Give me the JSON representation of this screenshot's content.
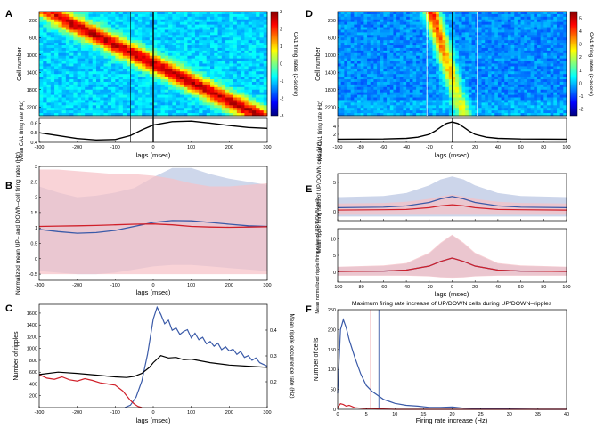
{
  "panels": {
    "A": {
      "label": "A",
      "heatmap": {
        "ylabel": "Cell number",
        "yticks": [
          200,
          600,
          1000,
          1400,
          1800,
          2200
        ],
        "ymax": 2400,
        "xlim": [
          -300,
          300
        ],
        "vlines": [
          -60,
          0
        ],
        "colorbar_label": "CA1 firing rates (z-score)",
        "cbar_ticks": [
          3,
          2,
          1,
          0,
          -1,
          -2,
          -3
        ],
        "cbar_range": [
          -3,
          3
        ]
      },
      "line": {
        "ylabel": "Mean CA1 firing rate (Hz)",
        "xlabel": "lags (msec)",
        "xlim": [
          -300,
          300
        ],
        "xticks": [
          -300,
          -200,
          -100,
          0,
          100,
          200,
          300
        ],
        "ylim": [
          0.4,
          0.65
        ],
        "yticks": [
          0.4,
          0.5,
          0.6
        ]
      }
    },
    "B": {
      "label": "B",
      "ylabel": "Normalized mean UP– and DOWN–cell firing rates (Hz)",
      "xlabel": "lags (msec)"
    },
    "C": {
      "label": "C",
      "ylabel": "Number of ripples",
      "ylabel_right": "Mean ripple occurrence rate (Hz)",
      "xlabel": "lags (msec)"
    },
    "D": {
      "label": "D",
      "heatmap": {
        "ylabel": "Cell number",
        "yticks": [
          200,
          600,
          1000,
          1400,
          1800,
          2200
        ],
        "ymax": 2400,
        "xlim": [
          -100,
          100
        ],
        "vlines": [
          -22,
          0,
          22
        ],
        "colorbar_label": "CA1 firing rates (z-score)",
        "cbar_ticks": [
          5,
          4,
          3,
          2,
          1,
          0,
          -1,
          -2
        ],
        "cbar_range": [
          -2.5,
          5.5
        ]
      },
      "line": {
        "ylabel": "Mean CA1 firing rate (Hz)",
        "xlabel": "lags (msec)",
        "xlim": [
          -100,
          100
        ],
        "xticks": [
          -100,
          -80,
          -60,
          -40,
          -20,
          0,
          20,
          40,
          60,
          80,
          100
        ],
        "ylim": [
          0,
          6
        ],
        "yticks": [
          2,
          4
        ]
      }
    },
    "E": {
      "label": "E",
      "top_ylabel": "Mean ripple firing rates of UP/DOWN cells (Hz)",
      "bottom_ylabel": "Mean normalized ripple firing rates of UP/DOWN cells",
      "xlabel": "lags (msec)"
    },
    "F": {
      "label": "F",
      "title": "Maximum firing rate increase of UP/DOWN cells during UP/DOWN–ripples",
      "ylabel": "Number of cells",
      "xlabel": "Firing rate increase (Hz)"
    }
  },
  "colors": {
    "up": "#3a5aa8",
    "down": "#d0202a",
    "black": "#000000",
    "up_fill": "#c6d0e8",
    "down_fill": "#f6c0c6",
    "white": "#ffffff"
  },
  "chart_data": [
    {
      "panel": "A-line",
      "type": "line",
      "xlabel": "lags (msec)",
      "ylabel": "Mean CA1 firing rate (Hz)",
      "xlim": [
        -300,
        300
      ],
      "ylim": [
        0.4,
        0.65
      ],
      "series": [
        {
          "name": "Mean CA1",
          "color": "black",
          "x": [
            -300,
            -250,
            -200,
            -150,
            -100,
            -60,
            -30,
            0,
            50,
            100,
            150,
            200,
            250,
            300
          ],
          "y": [
            0.5,
            0.47,
            0.44,
            0.425,
            0.43,
            0.47,
            0.53,
            0.58,
            0.615,
            0.62,
            0.6,
            0.575,
            0.555,
            0.545
          ]
        }
      ]
    },
    {
      "panel": "B",
      "type": "line",
      "xlabel": "lags (msec)",
      "ylabel": "Normalized mean UP– and DOWN–cell firing rates (Hz)",
      "xlim": [
        -300,
        300
      ],
      "ylim": [
        -0.7,
        3
      ],
      "xticks": [
        -300,
        -200,
        -100,
        0,
        100,
        200,
        300
      ],
      "yticks": [
        -0.5,
        0,
        0.5,
        1,
        1.5,
        2,
        2.5,
        3
      ],
      "series": [
        {
          "name": "UP",
          "color": "up",
          "x": [
            -300,
            -250,
            -200,
            -150,
            -100,
            -50,
            0,
            50,
            100,
            150,
            200,
            250,
            300
          ],
          "y": [
            0.95,
            0.88,
            0.83,
            0.85,
            0.92,
            1.05,
            1.18,
            1.24,
            1.23,
            1.18,
            1.12,
            1.07,
            1.05
          ],
          "upper": [
            2.35,
            2.15,
            2.0,
            2.05,
            2.15,
            2.3,
            2.65,
            2.95,
            2.95,
            2.75,
            2.6,
            2.5,
            2.4
          ],
          "lower": [
            -0.4,
            -0.45,
            -0.5,
            -0.5,
            -0.45,
            -0.35,
            -0.25,
            -0.2,
            -0.2,
            -0.25,
            -0.3,
            -0.35,
            -0.4
          ]
        },
        {
          "name": "DOWN",
          "color": "down",
          "x": [
            -300,
            -250,
            -200,
            -150,
            -100,
            -50,
            0,
            50,
            100,
            150,
            200,
            250,
            300
          ],
          "y": [
            1.05,
            1.06,
            1.07,
            1.08,
            1.1,
            1.12,
            1.13,
            1.1,
            1.05,
            1.03,
            1.02,
            1.03,
            1.04
          ],
          "upper": [
            2.9,
            2.9,
            2.85,
            2.8,
            2.75,
            2.75,
            2.7,
            2.6,
            2.45,
            2.35,
            2.35,
            2.4,
            2.45
          ],
          "lower": [
            -0.5,
            -0.5,
            -0.5,
            -0.5,
            -0.5,
            -0.5,
            -0.5,
            -0.5,
            -0.5,
            -0.5,
            -0.5,
            -0.5,
            -0.5
          ]
        }
      ]
    },
    {
      "panel": "C",
      "type": "line",
      "xlabel": "lags (msec)",
      "ylabel": "Number of ripples",
      "ylabel_right": "Mean ripple occurrence rate (Hz)",
      "xlim": [
        -300,
        300
      ],
      "ylim": [
        0,
        1750
      ],
      "xticks": [
        -300,
        -200,
        -100,
        0,
        100,
        200,
        300
      ],
      "yticks": [
        200,
        400,
        600,
        800,
        1000,
        1200,
        1400,
        1600
      ],
      "yticks_right": [
        0.2,
        0.3,
        0.4
      ],
      "series": [
        {
          "name": "UP-ripples",
          "color": "up",
          "x": [
            -75,
            -60,
            -45,
            -30,
            -15,
            0,
            10,
            20,
            30,
            40,
            50,
            60,
            70,
            80,
            90,
            100,
            110,
            120,
            130,
            140,
            150,
            160,
            170,
            180,
            190,
            200,
            210,
            220,
            230,
            240,
            250,
            260,
            270,
            280,
            290,
            300
          ],
          "y": [
            0,
            40,
            180,
            450,
            900,
            1500,
            1700,
            1580,
            1420,
            1480,
            1310,
            1350,
            1240,
            1290,
            1320,
            1180,
            1260,
            1150,
            1190,
            1080,
            1120,
            1040,
            1090,
            980,
            1030,
            960,
            990,
            900,
            950,
            850,
            880,
            800,
            840,
            760,
            730,
            700
          ]
        },
        {
          "name": "DOWN-ripples",
          "color": "down",
          "x": [
            -300,
            -280,
            -260,
            -240,
            -220,
            -200,
            -180,
            -160,
            -140,
            -120,
            -100,
            -90,
            -80,
            -70,
            -60,
            -50,
            -40,
            -30
          ],
          "y": [
            560,
            500,
            480,
            520,
            470,
            450,
            490,
            460,
            420,
            400,
            380,
            330,
            280,
            200,
            120,
            60,
            20,
            0
          ]
        },
        {
          "name": "Mean ripple occurrence rate",
          "color": "black",
          "x": [
            -300,
            -250,
            -200,
            -150,
            -100,
            -70,
            -50,
            -30,
            -10,
            0,
            20,
            40,
            60,
            80,
            100,
            150,
            200,
            250,
            300
          ],
          "y": [
            560,
            600,
            580,
            550,
            520,
            510,
            530,
            580,
            680,
            760,
            880,
            840,
            850,
            810,
            820,
            760,
            720,
            700,
            680
          ]
        }
      ]
    },
    {
      "panel": "D-line",
      "type": "line",
      "xlabel": "lags (msec)",
      "ylabel": "Mean CA1 firing rate (Hz)",
      "xlim": [
        -100,
        100
      ],
      "ylim": [
        0,
        6
      ],
      "series": [
        {
          "name": "Mean CA1",
          "color": "black",
          "x": [
            -100,
            -60,
            -40,
            -30,
            -20,
            -15,
            -10,
            -5,
            0,
            5,
            10,
            15,
            20,
            30,
            40,
            60,
            100
          ],
          "y": [
            0.8,
            0.85,
            1.0,
            1.3,
            2.0,
            2.8,
            3.8,
            4.7,
            5.1,
            4.7,
            3.8,
            2.8,
            2.0,
            1.3,
            1.0,
            0.85,
            0.8
          ]
        }
      ]
    },
    {
      "panel": "E-top",
      "type": "line",
      "xlabel": "",
      "ylabel": "Mean ripple firing rates of UP/DOWN cells (Hz)",
      "xlim": [
        -100,
        100
      ],
      "ylim": [
        -1.5,
        6.5
      ],
      "yticks": [
        0,
        5
      ],
      "series": [
        {
          "name": "UP",
          "color": "up",
          "x": [
            -100,
            -60,
            -40,
            -20,
            -10,
            0,
            10,
            20,
            40,
            60,
            100
          ],
          "y": [
            0.7,
            0.8,
            1.0,
            1.6,
            2.2,
            2.6,
            2.2,
            1.6,
            1.0,
            0.8,
            0.7
          ],
          "upper": [
            2.5,
            2.7,
            3.2,
            4.5,
            5.5,
            6.0,
            5.5,
            4.5,
            3.2,
            2.7,
            2.5
          ],
          "lower": [
            -0.8,
            -0.8,
            -0.8,
            -0.8,
            -0.8,
            -0.8,
            -0.8,
            -0.8,
            -0.8,
            -0.8,
            -0.8
          ]
        },
        {
          "name": "DOWN",
          "color": "down",
          "x": [
            -100,
            -60,
            -40,
            -20,
            -10,
            0,
            10,
            20,
            40,
            60,
            100
          ],
          "y": [
            0.3,
            0.35,
            0.4,
            0.7,
            1.0,
            1.2,
            1.0,
            0.7,
            0.4,
            0.35,
            0.3
          ],
          "upper": [
            1.4,
            1.5,
            1.7,
            2.2,
            2.6,
            2.9,
            2.6,
            2.2,
            1.7,
            1.5,
            1.4
          ],
          "lower": [
            -0.5,
            -0.5,
            -0.5,
            -0.5,
            -0.5,
            -0.5,
            -0.5,
            -0.5,
            -0.5,
            -0.5,
            -0.5
          ]
        }
      ]
    },
    {
      "panel": "E-bottom",
      "type": "line",
      "xlabel": "lags (msec)",
      "ylabel": "Mean normalized ripple firing rates of UP/DOWN cells",
      "xlim": [
        -100,
        100
      ],
      "ylim": [
        -3,
        13
      ],
      "xticks": [
        -100,
        -80,
        -60,
        -40,
        -20,
        0,
        20,
        40,
        60,
        80,
        100
      ],
      "yticks": [
        0,
        5,
        10
      ],
      "series": [
        {
          "name": "UP",
          "color": "up",
          "x": [
            -100,
            -60,
            -40,
            -20,
            -10,
            0,
            10,
            20,
            40,
            60,
            100
          ],
          "y": [
            0.2,
            0.3,
            0.6,
            1.8,
            3.2,
            4.2,
            3.2,
            1.8,
            0.6,
            0.3,
            0.2
          ],
          "upper": [
            1.5,
            1.8,
            2.5,
            5.5,
            8.5,
            11.0,
            8.5,
            5.5,
            2.5,
            1.8,
            1.5
          ],
          "lower": [
            -1.0,
            -1.0,
            -1.0,
            -1.2,
            -1.5,
            -1.6,
            -1.5,
            -1.2,
            -1.0,
            -1.0,
            -1.0
          ]
        },
        {
          "name": "DOWN",
          "color": "down",
          "x": [
            -100,
            -60,
            -40,
            -20,
            -10,
            0,
            10,
            20,
            40,
            60,
            100
          ],
          "y": [
            0.2,
            0.3,
            0.6,
            1.8,
            3.2,
            4.2,
            3.2,
            1.8,
            0.6,
            0.3,
            0.2
          ],
          "upper": [
            1.6,
            2.0,
            2.7,
            5.8,
            8.8,
            11.2,
            8.8,
            5.8,
            2.7,
            2.0,
            1.6
          ],
          "lower": [
            -1.1,
            -1.1,
            -1.1,
            -1.3,
            -1.6,
            -1.7,
            -1.6,
            -1.3,
            -1.1,
            -1.1,
            -1.1
          ]
        }
      ]
    },
    {
      "panel": "F",
      "type": "line",
      "title": "Maximum firing rate increase of UP/DOWN cells during UP/DOWN–ripples",
      "xlabel": "Firing rate increase (Hz)",
      "ylabel": "Number of cells",
      "xlim": [
        0,
        40
      ],
      "ylim": [
        0,
        250
      ],
      "xticks": [
        0,
        5,
        10,
        15,
        20,
        25,
        30,
        35,
        40
      ],
      "yticks": [
        0,
        50,
        100,
        150,
        200,
        250
      ],
      "vlines": [
        {
          "x": 5.8,
          "color": "down"
        },
        {
          "x": 7.2,
          "color": "up"
        }
      ],
      "series": [
        {
          "name": "UP cells",
          "color": "up",
          "x": [
            0,
            0.5,
            1,
            1.5,
            2,
            3,
            4,
            5,
            6,
            7,
            8,
            9,
            10,
            12,
            14,
            16,
            18,
            20,
            22,
            25,
            30,
            35,
            40
          ],
          "y": [
            40,
            200,
            225,
            205,
            175,
            130,
            90,
            60,
            45,
            35,
            25,
            20,
            15,
            10,
            8,
            5,
            5,
            6,
            3,
            2,
            1,
            0,
            0
          ]
        },
        {
          "name": "DOWN cells",
          "color": "down",
          "x": [
            0,
            0.5,
            1,
            1.5,
            2,
            3,
            4,
            5,
            6,
            7,
            8,
            10,
            12,
            15,
            20,
            30,
            40
          ],
          "y": [
            5,
            14,
            12,
            8,
            10,
            4,
            3,
            2,
            2,
            1,
            1,
            0,
            0,
            0,
            0,
            0,
            0
          ]
        }
      ]
    }
  ]
}
